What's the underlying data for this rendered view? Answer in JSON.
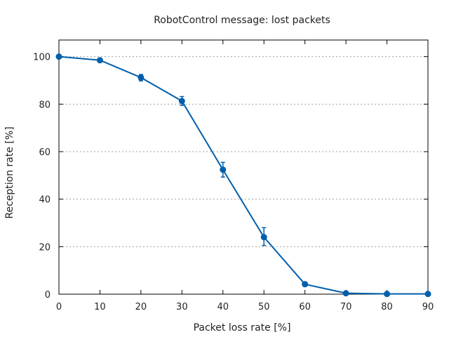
{
  "chart_data": {
    "type": "line",
    "title": "RobotControl message: lost packets",
    "xlabel": "Packet loss rate [%]",
    "ylabel": "Reception rate [%]",
    "x": [
      0,
      10,
      20,
      30,
      40,
      50,
      60,
      70,
      80,
      90
    ],
    "xticks": [
      "0",
      "10",
      "20",
      "30",
      "40",
      "50",
      "60",
      "70",
      "80",
      "90"
    ],
    "yticks": [
      "0",
      "20",
      "40",
      "60",
      "80",
      "100"
    ],
    "xlim": [
      0,
      90
    ],
    "ylim": [
      0,
      107
    ],
    "grid": "horizontal dotted",
    "legend": "none",
    "series": [
      {
        "values": [
          100,
          98.5,
          91.2,
          81.3,
          52.4,
          24.0,
          4.2,
          0.4,
          0.1,
          0.1
        ],
        "err_low": [
          99.8,
          97.9,
          89.8,
          79.5,
          49.3,
          20.5,
          3.4,
          0.2,
          0.0,
          0.0
        ],
        "err_high": [
          100.2,
          99.2,
          92.5,
          83.2,
          55.5,
          28.0,
          5.1,
          0.6,
          0.2,
          0.2
        ],
        "color": "#005fad"
      }
    ]
  }
}
